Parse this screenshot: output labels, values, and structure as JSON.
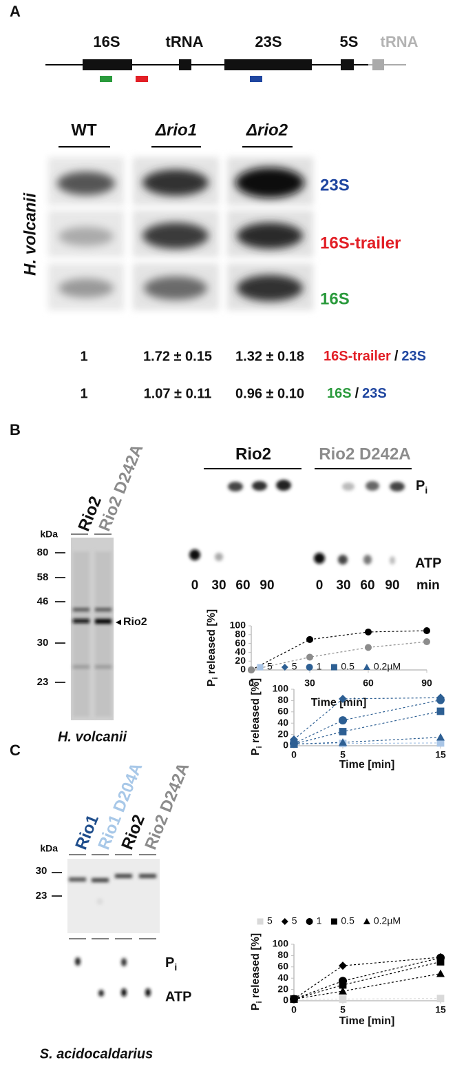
{
  "panel_a": {
    "letter": "A",
    "genes": [
      "16S",
      "tRNA",
      "23S",
      "5S",
      "tRNA"
    ],
    "strains": [
      "WT",
      "Δrio1",
      "Δrio2"
    ],
    "organism": "H. volcanii",
    "probes": [
      "23S",
      "16S-trailer",
      "16S"
    ],
    "ratios": [
      {
        "values": [
          "1",
          "1.72 ± 0.15",
          "1.32 ± 0.18"
        ],
        "numerator": "16S-trailer",
        "slash": "/",
        "denominator": "23S"
      },
      {
        "values": [
          "1",
          "1.07 ± 0.11",
          "0.96 ± 0.10"
        ],
        "numerator": "16S",
        "slash": "/",
        "denominator": "23S"
      }
    ]
  },
  "panel_b": {
    "letter": "B",
    "gel": {
      "lanes": [
        "Rio2",
        "Rio2 D242A"
      ],
      "unit": "kDa",
      "markers": [
        "80",
        "58",
        "46",
        "30",
        "23"
      ],
      "band_label": "Rio2",
      "organism": "H. volcanii"
    },
    "tlc": {
      "groups": [
        "Rio2",
        "Rio2 D242A"
      ],
      "pi": {
        "main": "P",
        "sub": "i"
      },
      "atp": "ATP",
      "times": [
        "0",
        "30",
        "60",
        "90",
        "0",
        "30",
        "60",
        "90"
      ],
      "time_unit": "min"
    }
  },
  "panel_c": {
    "letter": "C",
    "gel": {
      "lanes": [
        "Rio1",
        "Rio1 D204A",
        "Rio2",
        "Rio2 D242A"
      ],
      "unit": "kDa",
      "markers": [
        "30",
        "23"
      ],
      "organism": "S. acidocaldarius"
    },
    "tlc": {
      "pi": {
        "main": "P",
        "sub": "i"
      },
      "atp": "ATP"
    }
  },
  "chart_data": [
    {
      "type": "scatter",
      "y_label": {
        "main": "P",
        "sub": "i",
        "rest": " released [%]"
      },
      "x_label": "Time [min]",
      "x": [
        0,
        30,
        60,
        90
      ],
      "xlim": [
        0,
        90
      ],
      "xticks": [
        0,
        30,
        60,
        90
      ],
      "ylim": [
        0,
        100
      ],
      "yticks": [
        0,
        20,
        40,
        60,
        80,
        100
      ],
      "series": [
        {
          "color": "#000000",
          "marker": "circle",
          "values": [
            0,
            69,
            86,
            89
          ]
        },
        {
          "color": "#8c8c8c",
          "marker": "circle",
          "values": [
            0,
            29,
            51,
            64
          ]
        }
      ]
    },
    {
      "type": "scatter",
      "y_label": {
        "main": "P",
        "sub": "i",
        "rest": " released [%]"
      },
      "x_label": "Time [min]",
      "x": [
        0,
        5,
        15
      ],
      "xlim": [
        0,
        15
      ],
      "xticks": [
        0,
        5,
        15
      ],
      "ylim": [
        0,
        100
      ],
      "yticks": [
        0,
        20,
        40,
        60,
        80,
        100
      ],
      "series": [
        {
          "name": "5",
          "color": "#a9c5e6",
          "marker": "square",
          "values": [
            3,
            4,
            5
          ]
        },
        {
          "name": "5",
          "color": "#2d5f93",
          "marker": "diamond",
          "values": [
            11,
            83,
            85
          ]
        },
        {
          "name": "1",
          "color": "#2d5f93",
          "marker": "circle",
          "values": [
            4,
            45,
            81
          ]
        },
        {
          "name": "0.5",
          "color": "#2d5f93",
          "marker": "square",
          "values": [
            3,
            25,
            61
          ]
        },
        {
          "name": "0.2µM",
          "color": "#2d5f93",
          "marker": "triangle",
          "values": [
            3,
            6,
            15
          ]
        }
      ]
    },
    {
      "type": "scatter",
      "y_label": {
        "main": "P",
        "sub": "i",
        "rest": " released [%]"
      },
      "x_label": "Time [min]",
      "x": [
        0,
        5,
        15
      ],
      "xlim": [
        0,
        15
      ],
      "xticks": [
        0,
        5,
        15
      ],
      "ylim": [
        0,
        100
      ],
      "yticks": [
        0,
        20,
        40,
        60,
        80,
        100
      ],
      "series": [
        {
          "name": "5",
          "color": "#d9d9d9",
          "marker": "square",
          "values": [
            3,
            3,
            4
          ]
        },
        {
          "name": "5",
          "color": "#000000",
          "marker": "diamond",
          "values": [
            3,
            62,
            77
          ]
        },
        {
          "name": "1",
          "color": "#000000",
          "marker": "circle",
          "values": [
            3,
            35,
            76
          ]
        },
        {
          "name": "0.5",
          "color": "#000000",
          "marker": "square",
          "values": [
            3,
            28,
            69
          ]
        },
        {
          "name": "0.2µM",
          "color": "#000000",
          "marker": "triangle",
          "values": [
            3,
            17,
            48
          ]
        }
      ]
    }
  ]
}
